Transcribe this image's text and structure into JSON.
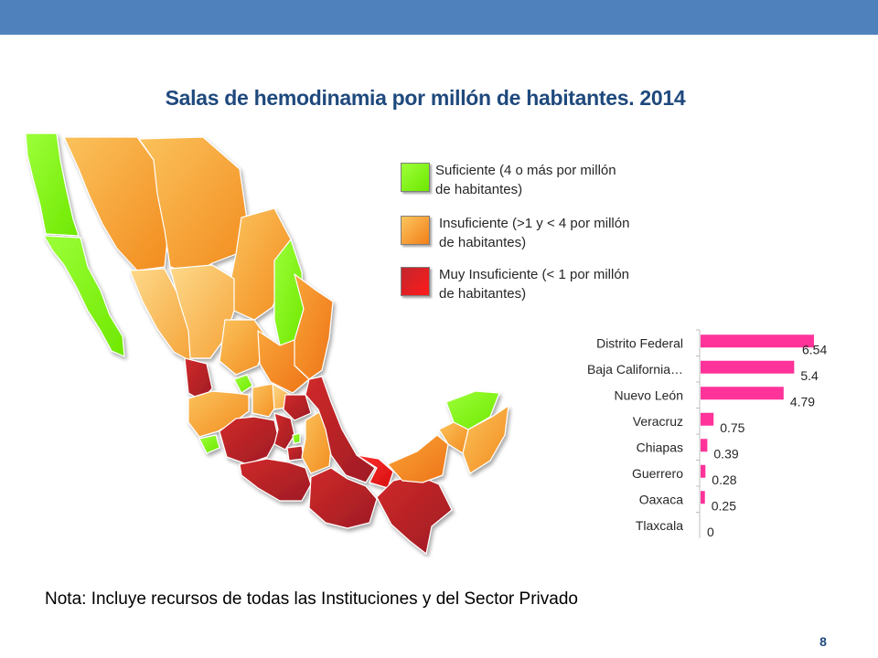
{
  "title": "Salas de hemodinamia por millón de habitantes. 2014",
  "legend": [
    {
      "label": "Suficiente (4 o más por millón de habitantes)",
      "color": "#7fff00"
    },
    {
      "label": "Insuficiente (>1 y < 4 por millón de habitantes)",
      "color": "#f7941d"
    },
    {
      "label": "Muy Insuficiente (< 1 por millón de habitantes)",
      "color": "#c1272d"
    }
  ],
  "chart_data": {
    "type": "bar",
    "orientation": "horizontal",
    "categories": [
      "Distrito Federal",
      "Baja California…",
      "Nuevo León",
      "Veracruz",
      "Chiapas",
      "Guerrero",
      "Oaxaca",
      "Tlaxcala"
    ],
    "values": [
      6.54,
      5.4,
      4.79,
      0.75,
      0.39,
      0.28,
      0.25,
      0
    ],
    "value_labels": [
      "6.54",
      "5.4",
      "4.79",
      "0.75",
      "0.39",
      "0.28",
      "0.25",
      "0"
    ],
    "xlim": [
      0,
      6.54
    ],
    "bar_color": "#ff3399",
    "grid": false
  },
  "note": "Nota: Incluye recursos de todas las Instituciones y del Sector Privado",
  "page_number": "8"
}
